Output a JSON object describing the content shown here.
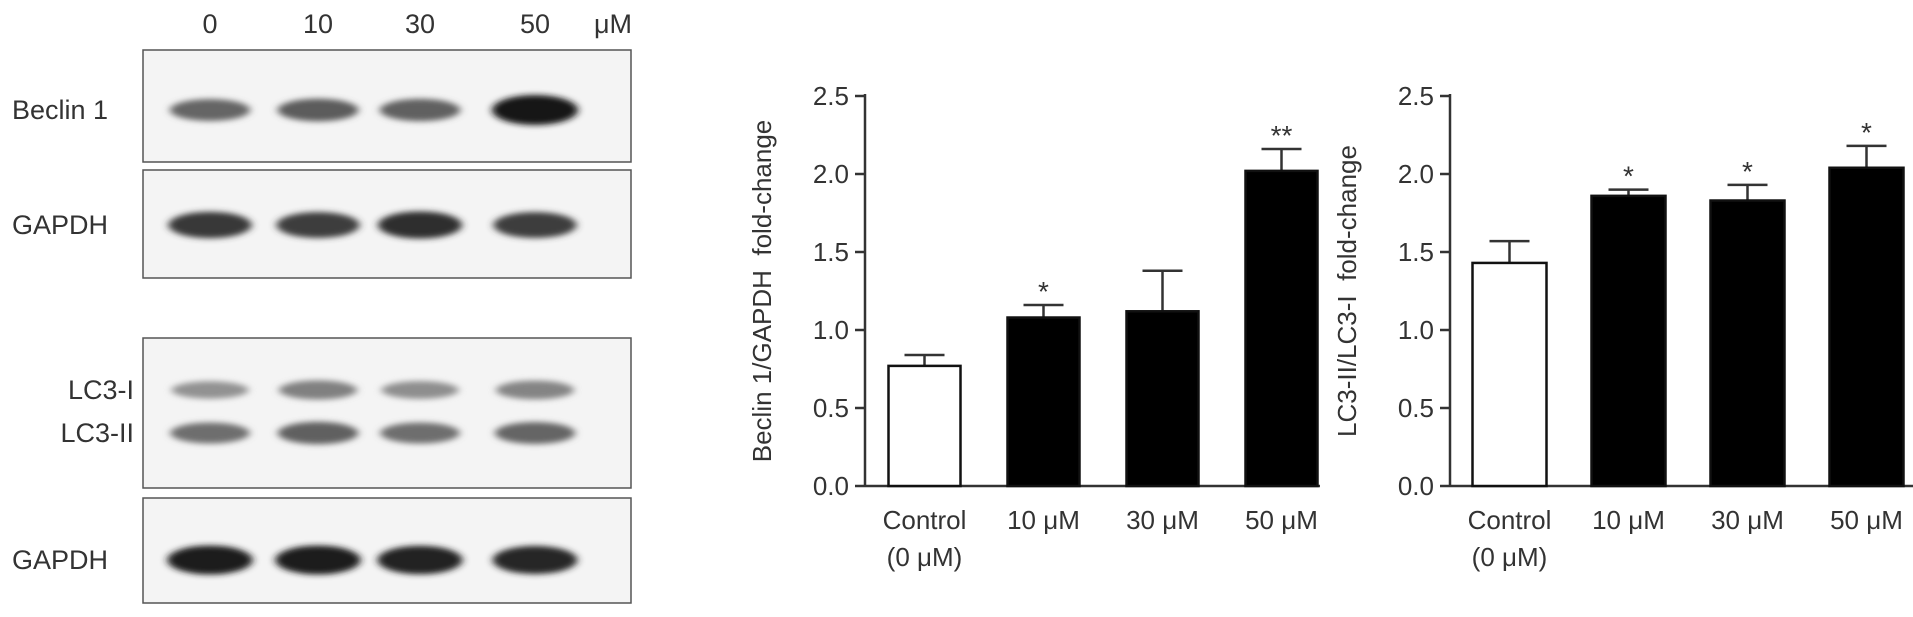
{
  "blot": {
    "concentrations": [
      "0",
      "10",
      "30",
      "50"
    ],
    "unit": "μM",
    "panels": [
      {
        "labels": [
          "Beclin 1"
        ],
        "intensity": [
          [
            0.55,
            0.6,
            0.58,
            1.0
          ]
        ]
      },
      {
        "labels": [
          "GAPDH"
        ],
        "intensity": [
          [
            0.8,
            0.78,
            0.85,
            0.78
          ]
        ]
      },
      {
        "labels": [
          "LC3-I",
          "LC3-II"
        ],
        "intensity": [
          [
            0.3,
            0.4,
            0.32,
            0.38
          ],
          [
            0.5,
            0.58,
            0.5,
            0.55
          ]
        ]
      },
      {
        "labels": [
          "GAPDH"
        ],
        "intensity": [
          [
            0.95,
            0.95,
            0.92,
            0.9
          ]
        ]
      }
    ]
  },
  "chart_data": [
    {
      "type": "bar",
      "categories": [
        [
          "Control",
          "(0 μM)"
        ],
        [
          "10 μM"
        ],
        [
          "30 μM"
        ],
        [
          "50 μM"
        ]
      ],
      "values": [
        0.77,
        1.08,
        1.12,
        2.02
      ],
      "errors": [
        0.07,
        0.08,
        0.26,
        0.14
      ],
      "significance": [
        "",
        "*",
        "",
        "**"
      ],
      "bar_fills": [
        "#ffffff",
        "#000000",
        "#000000",
        "#000000"
      ],
      "ylabel": "Beclin 1/GAPDH  fold-change",
      "ylim": [
        0,
        2.5
      ],
      "yticks": [
        "0.0",
        "0.5",
        "1.0",
        "1.5",
        "2.0",
        "2.5"
      ]
    },
    {
      "type": "bar",
      "categories": [
        [
          "Control",
          "(0 μM)"
        ],
        [
          "10 μM"
        ],
        [
          "30 μM"
        ],
        [
          "50 μM"
        ]
      ],
      "values": [
        1.43,
        1.86,
        1.83,
        2.04
      ],
      "errors": [
        0.14,
        0.04,
        0.1,
        0.14
      ],
      "significance": [
        "",
        "*",
        "*",
        "*"
      ],
      "bar_fills": [
        "#ffffff",
        "#000000",
        "#000000",
        "#000000"
      ],
      "ylabel": "LC3-II/LC3-I  fold-change",
      "ylim": [
        0,
        2.5
      ],
      "yticks": [
        "0.0",
        "0.5",
        "1.0",
        "1.5",
        "2.0",
        "2.5"
      ]
    }
  ]
}
